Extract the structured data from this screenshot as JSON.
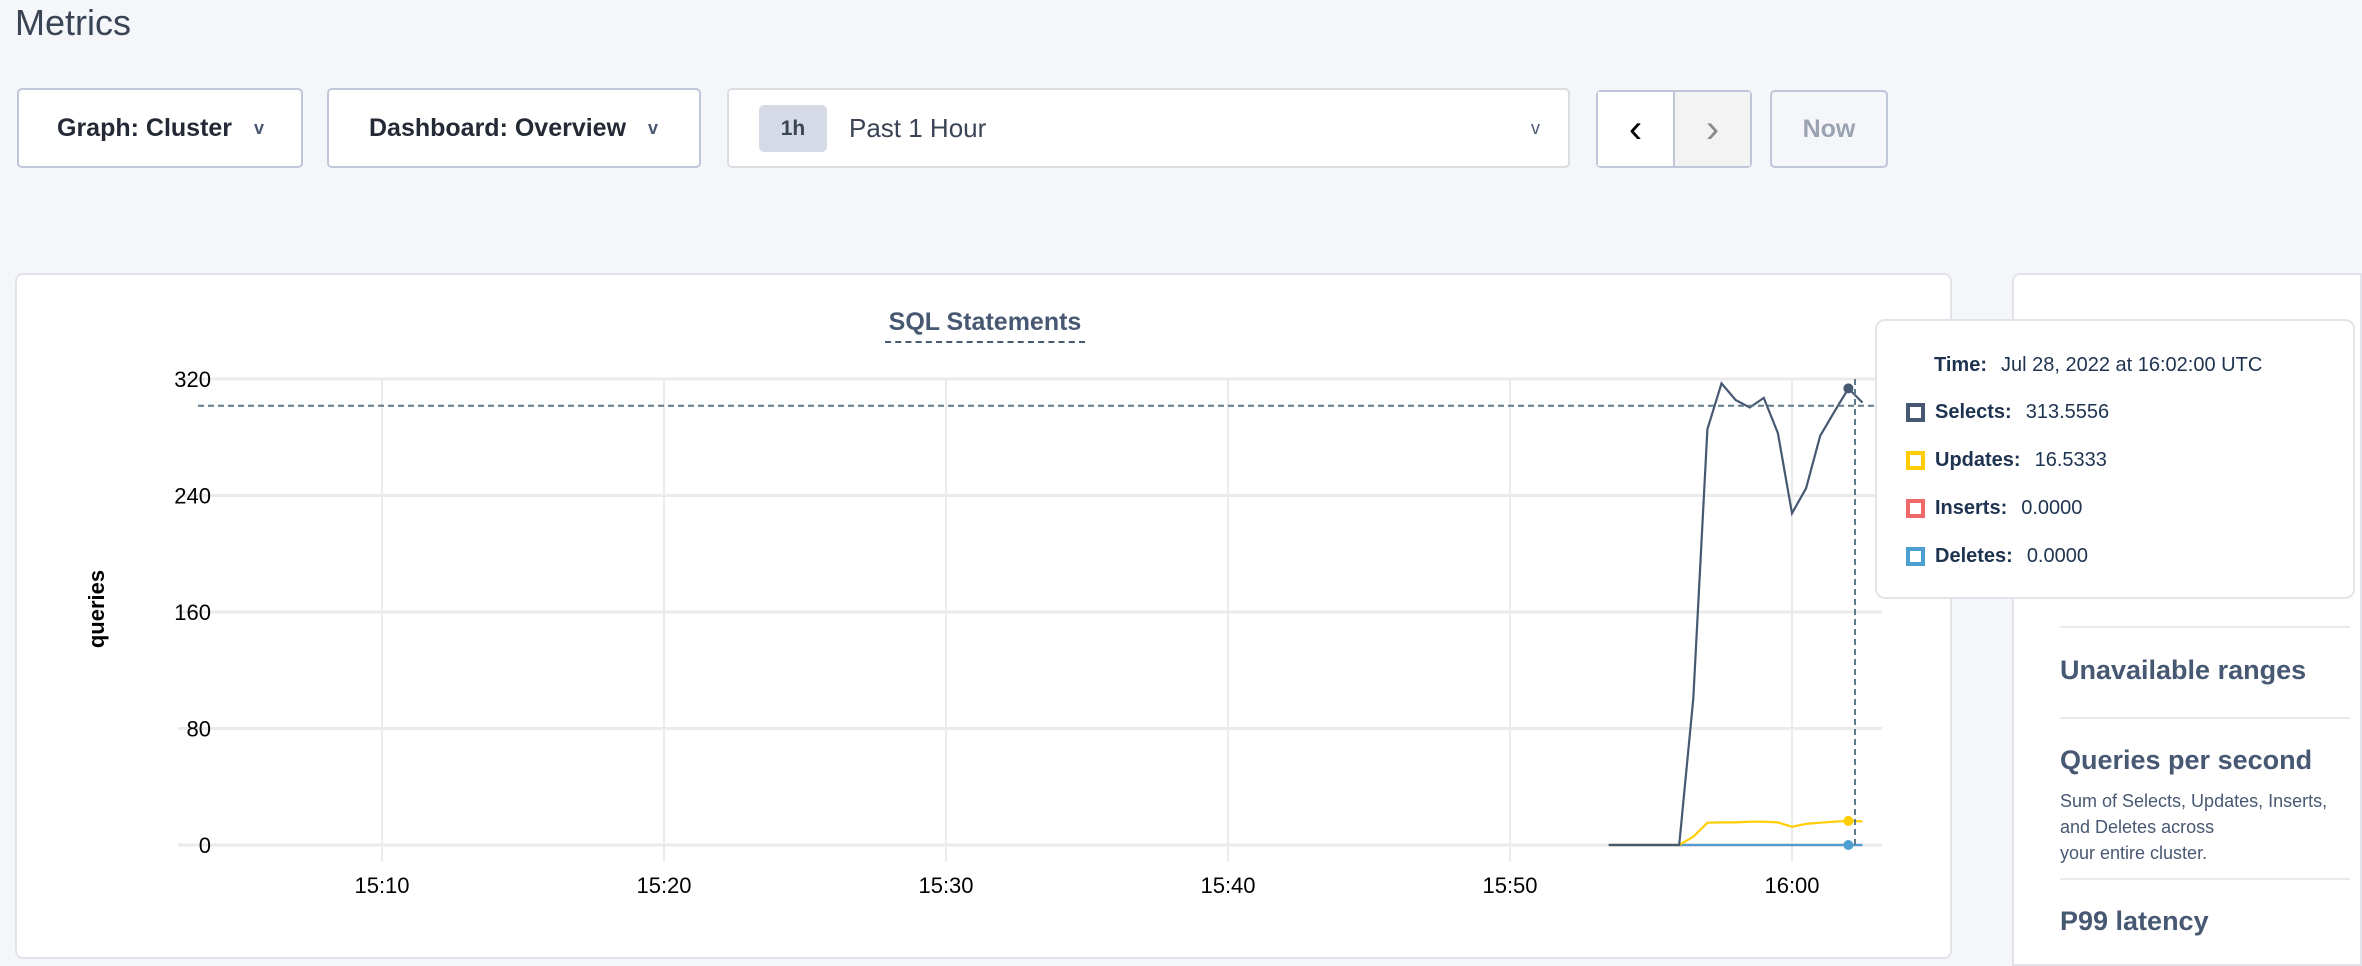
{
  "page": {
    "title": "Metrics"
  },
  "toolbar": {
    "graph_label": "Graph: Cluster",
    "dashboard_label": "Dashboard: Overview",
    "range_chip": "1h",
    "range_label": "Past 1 Hour",
    "prev_icon": "chevron-left-icon",
    "next_icon": "chevron-right-icon",
    "now_label": "Now"
  },
  "colors": {
    "selects": "#475872",
    "updates": "#ffcd02",
    "inserts": "#f16969",
    "deletes": "#4e9fd1",
    "crosshair": "#5f7a8a"
  },
  "chart_data": {
    "type": "line",
    "title": "SQL Statements",
    "xlabel": "",
    "ylabel": "queries",
    "ylim": [
      0,
      320
    ],
    "yticks": [
      0,
      80,
      160,
      240,
      320
    ],
    "xlim": [
      "15:03",
      "16:03"
    ],
    "xticks": [
      "15:10",
      "15:20",
      "15:30",
      "15:40",
      "15:50",
      "16:00"
    ],
    "grid": true,
    "legend": "none",
    "x": [
      "15:53:30",
      "15:54:00",
      "15:54:30",
      "15:55:00",
      "15:55:30",
      "15:56:00",
      "15:56:30",
      "15:57:00",
      "15:57:30",
      "15:58:00",
      "15:58:30",
      "15:59:00",
      "15:59:30",
      "16:00:00",
      "16:00:30",
      "16:01:00",
      "16:01:30",
      "16:02:00",
      "16:02:30"
    ],
    "series": [
      {
        "name": "Inserts",
        "values": [
          0,
          0,
          0,
          0,
          0,
          0,
          0,
          0,
          0,
          0,
          0,
          0,
          0,
          0,
          0,
          0,
          0,
          0,
          0
        ]
      },
      {
        "name": "Deletes",
        "values": [
          0,
          0,
          0,
          0,
          0,
          0,
          0,
          0,
          0,
          0,
          0,
          0,
          0,
          0,
          0,
          0,
          0,
          0,
          0
        ]
      },
      {
        "name": "Updates",
        "values": [
          0,
          0,
          0,
          0,
          0,
          0,
          5.7,
          15.3,
          15.5,
          15.5,
          16,
          16,
          15.5,
          12.5,
          14.5,
          15.3,
          16,
          16.5333,
          16.2
        ]
      },
      {
        "name": "Selects",
        "values": [
          0,
          0,
          0,
          0,
          0,
          0,
          100.7,
          285.5,
          317,
          305.6,
          300.4,
          307,
          282.8,
          227.8,
          245,
          281,
          297.5,
          313.5556,
          303.8
        ]
      }
    ],
    "hover_index": 17
  },
  "tooltip": {
    "time_label": "Time:",
    "time_value": "Jul 28, 2022 at 16:02:00 UTC",
    "rows": [
      {
        "label": "Selects:",
        "value": "313.5556"
      },
      {
        "label": "Updates:",
        "value": "16.5333"
      },
      {
        "label": "Inserts:",
        "value": "0.0000"
      },
      {
        "label": "Deletes:",
        "value": "0.0000"
      }
    ]
  },
  "side": {
    "items": [
      {
        "title": "Unavailable ranges"
      },
      {
        "title": "Queries per second",
        "desc_lines": [
          "Sum of Selects, Updates, Inserts, and Deletes across",
          "your entire cluster."
        ]
      },
      {
        "title": "P99 latency"
      }
    ]
  }
}
